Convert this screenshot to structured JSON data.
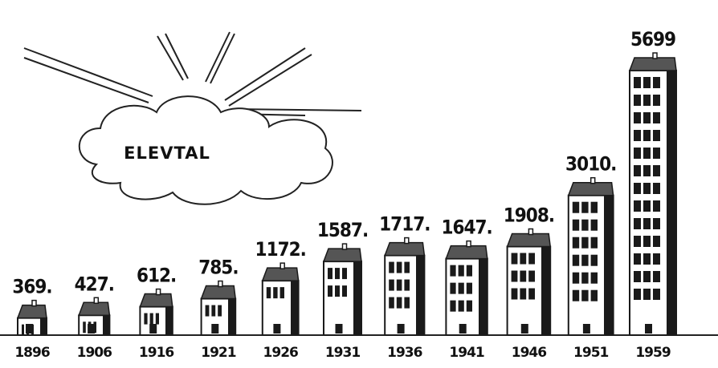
{
  "chart_data": {
    "type": "pictogram",
    "title": "ELEVTAL",
    "categories": [
      "1896",
      "1906",
      "1916",
      "1921",
      "1926",
      "1931",
      "1936",
      "1941",
      "1946",
      "1951",
      "1959"
    ],
    "values": [
      369,
      427,
      612,
      785,
      1172,
      1587,
      1717,
      1647,
      1908,
      3010,
      5699
    ],
    "value_labels": [
      "369.",
      "427.",
      "612.",
      "785.",
      "1172.",
      "1587.",
      "1717.",
      "1647.",
      "1908.",
      "3010.",
      "5699"
    ],
    "color": "#1a1a1a"
  }
}
